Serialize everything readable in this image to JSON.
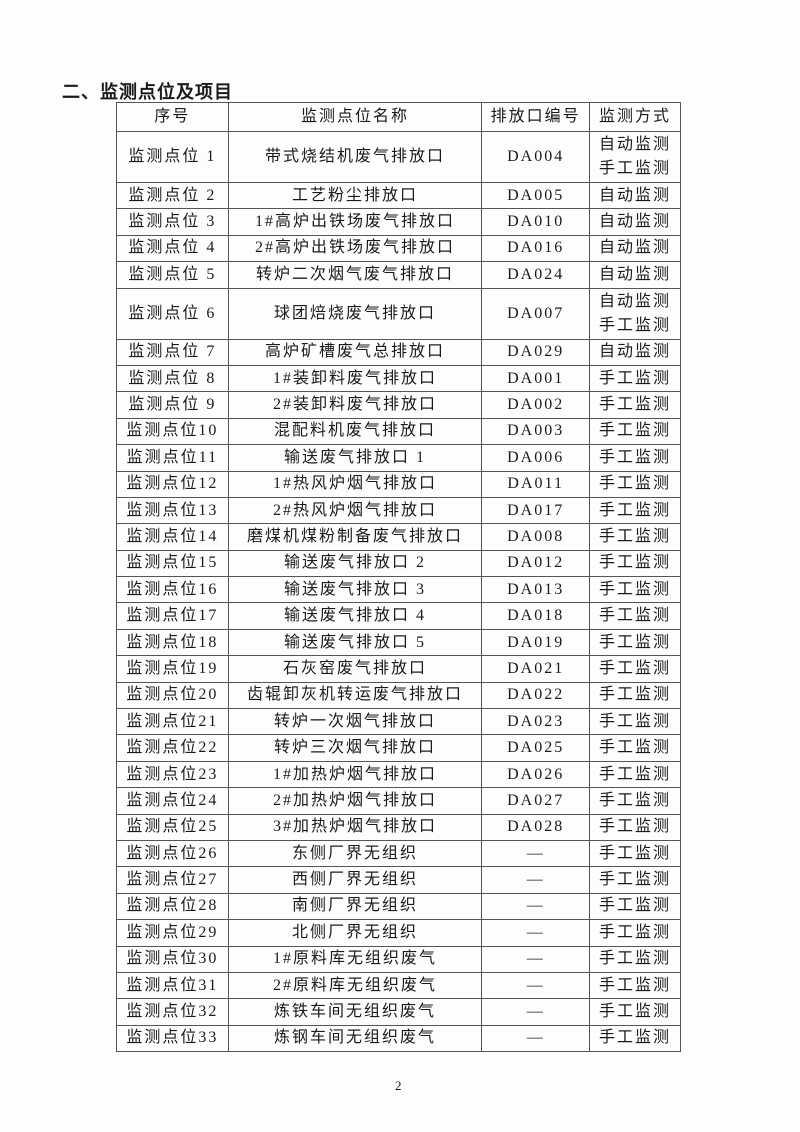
{
  "heading": "二、监测点位及项目",
  "table": {
    "headers": [
      "序号",
      "监测点位名称",
      "排放口编号",
      "监测方式"
    ],
    "rows": [
      {
        "seq": "监测点位 1",
        "name": "带式烧结机废气排放口",
        "outlet": "DA004",
        "methods": [
          "自动监测",
          "手工监测"
        ]
      },
      {
        "seq": "监测点位 2",
        "name": "工艺粉尘排放口",
        "outlet": "DA005",
        "methods": [
          "自动监测"
        ]
      },
      {
        "seq": "监测点位 3",
        "name": "1#高炉出铁场废气排放口",
        "outlet": "DA010",
        "methods": [
          "自动监测"
        ]
      },
      {
        "seq": "监测点位 4",
        "name": "2#高炉出铁场废气排放口",
        "outlet": "DA016",
        "methods": [
          "自动监测"
        ]
      },
      {
        "seq": "监测点位 5",
        "name": "转炉二次烟气废气排放口",
        "outlet": "DA024",
        "methods": [
          "自动监测"
        ]
      },
      {
        "seq": "监测点位 6",
        "name": "球团焙烧废气排放口",
        "outlet": "DA007",
        "methods": [
          "自动监测",
          "手工监测"
        ]
      },
      {
        "seq": "监测点位 7",
        "name": "高炉矿槽废气总排放口",
        "outlet": "DA029",
        "methods": [
          "自动监测"
        ]
      },
      {
        "seq": "监测点位 8",
        "name": "1#装卸料废气排放口",
        "outlet": "DA001",
        "methods": [
          "手工监测"
        ]
      },
      {
        "seq": "监测点位 9",
        "name": "2#装卸料废气排放口",
        "outlet": "DA002",
        "methods": [
          "手工监测"
        ]
      },
      {
        "seq": "监测点位10",
        "name": "混配料机废气排放口",
        "outlet": "DA003",
        "methods": [
          "手工监测"
        ]
      },
      {
        "seq": "监测点位11",
        "name": "输送废气排放口 1",
        "outlet": "DA006",
        "methods": [
          "手工监测"
        ]
      },
      {
        "seq": "监测点位12",
        "name": "1#热风炉烟气排放口",
        "outlet": "DA011",
        "methods": [
          "手工监测"
        ]
      },
      {
        "seq": "监测点位13",
        "name": "2#热风炉烟气排放口",
        "outlet": "DA017",
        "methods": [
          "手工监测"
        ]
      },
      {
        "seq": "监测点位14",
        "name": "磨煤机煤粉制备废气排放口",
        "outlet": "DA008",
        "methods": [
          "手工监测"
        ]
      },
      {
        "seq": "监测点位15",
        "name": "输送废气排放口 2",
        "outlet": "DA012",
        "methods": [
          "手工监测"
        ]
      },
      {
        "seq": "监测点位16",
        "name": "输送废气排放口 3",
        "outlet": "DA013",
        "methods": [
          "手工监测"
        ]
      },
      {
        "seq": "监测点位17",
        "name": "输送废气排放口 4",
        "outlet": "DA018",
        "methods": [
          "手工监测"
        ]
      },
      {
        "seq": "监测点位18",
        "name": "输送废气排放口 5",
        "outlet": "DA019",
        "methods": [
          "手工监测"
        ]
      },
      {
        "seq": "监测点位19",
        "name": "石灰窑废气排放口",
        "outlet": "DA021",
        "methods": [
          "手工监测"
        ]
      },
      {
        "seq": "监测点位20",
        "name": "齿辊卸灰机转运废气排放口",
        "outlet": "DA022",
        "methods": [
          "手工监测"
        ]
      },
      {
        "seq": "监测点位21",
        "name": "转炉一次烟气排放口",
        "outlet": "DA023",
        "methods": [
          "手工监测"
        ]
      },
      {
        "seq": "监测点位22",
        "name": "转炉三次烟气排放口",
        "outlet": "DA025",
        "methods": [
          "手工监测"
        ]
      },
      {
        "seq": "监测点位23",
        "name": "1#加热炉烟气排放口",
        "outlet": "DA026",
        "methods": [
          "手工监测"
        ]
      },
      {
        "seq": "监测点位24",
        "name": "2#加热炉烟气排放口",
        "outlet": "DA027",
        "methods": [
          "手工监测"
        ]
      },
      {
        "seq": "监测点位25",
        "name": "3#加热炉烟气排放口",
        "outlet": "DA028",
        "methods": [
          "手工监测"
        ]
      },
      {
        "seq": "监测点位26",
        "name": "东侧厂界无组织",
        "outlet": "—",
        "methods": [
          "手工监测"
        ]
      },
      {
        "seq": "监测点位27",
        "name": "西侧厂界无组织",
        "outlet": "—",
        "methods": [
          "手工监测"
        ]
      },
      {
        "seq": "监测点位28",
        "name": "南侧厂界无组织",
        "outlet": "—",
        "methods": [
          "手工监测"
        ]
      },
      {
        "seq": "监测点位29",
        "name": "北侧厂界无组织",
        "outlet": "—",
        "methods": [
          "手工监测"
        ]
      },
      {
        "seq": "监测点位30",
        "name": "1#原料库无组织废气",
        "outlet": "—",
        "methods": [
          "手工监测"
        ]
      },
      {
        "seq": "监测点位31",
        "name": "2#原料库无组织废气",
        "outlet": "—",
        "methods": [
          "手工监测"
        ]
      },
      {
        "seq": "监测点位32",
        "name": "炼铁车间无组织废气",
        "outlet": "—",
        "methods": [
          "手工监测"
        ]
      },
      {
        "seq": "监测点位33",
        "name": "炼钢车间无组织废气",
        "outlet": "—",
        "methods": [
          "手工监测"
        ]
      }
    ]
  },
  "page_number": "2"
}
